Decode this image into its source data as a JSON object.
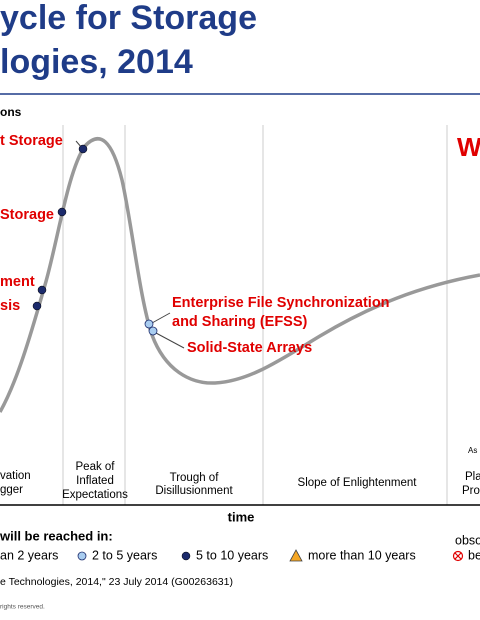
{
  "header": {
    "title_lines": [
      "ycle for Storage",
      "logies, 2014"
    ]
  },
  "y_axis_label": "ons",
  "technologies": [
    "t Storage",
    "Storage",
    "ment",
    "sis",
    "Enterprise File Synchronization",
    "and Sharing (EFSS)",
    "Solid-State Arrays"
  ],
  "watermark": "W",
  "as_of": "As",
  "phases": [
    [
      "vation",
      "gger"
    ],
    [
      "Peak of",
      "Inflated",
      "Expectations"
    ],
    [
      "Trough of",
      "Disillusionment"
    ],
    [
      "Slope of Enlightenment"
    ],
    [
      "Pla",
      "Pro"
    ]
  ],
  "x_axis_label": "time",
  "legend": {
    "title": "will be reached in:",
    "items": [
      "an 2 years",
      "2 to 5 years",
      "5 to 10 years",
      "more than 10 years",
      "obso",
      "befor"
    ]
  },
  "footer": {
    "source": "e Technologies, 2014,\" 23 July 2014 (G00263631)",
    "rights": "rights reserved."
  }
}
